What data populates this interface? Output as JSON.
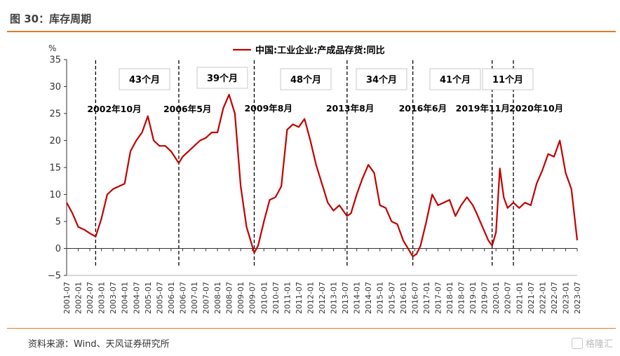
{
  "header": {
    "title": "图 30：库存周期"
  },
  "footer": {
    "source": "资料来源：Wind、天风证券研究所",
    "watermark": "格隆汇"
  },
  "colors": {
    "series": "#c00000",
    "rule": "#e07a2a",
    "vline": "#000000",
    "axis": "#333333"
  },
  "chart_data": {
    "type": "line",
    "title": "",
    "ylabel": "%",
    "xlabel": "",
    "ylim": [
      -5,
      35
    ],
    "yticks": [
      -5,
      0,
      5,
      10,
      15,
      20,
      25,
      30,
      35
    ],
    "xticks": [
      "2001-07",
      "2002-01",
      "2002-07",
      "2003-01",
      "2003-07",
      "2004-01",
      "2004-07",
      "2005-01",
      "2005-07",
      "2006-01",
      "2006-07",
      "2007-01",
      "2007-07",
      "2008-01",
      "2008-07",
      "2009-01",
      "2009-07",
      "2010-01",
      "2010-07",
      "2011-01",
      "2011-07",
      "2012-01",
      "2012-07",
      "2013-01",
      "2013-07",
      "2014-01",
      "2014-07",
      "2015-01",
      "2015-07",
      "2016-01",
      "2016-07",
      "2017-01",
      "2017-07",
      "2018-01",
      "2018-07",
      "2019-01",
      "2019-07",
      "2020-01",
      "2020-07",
      "2021-01",
      "2021-07",
      "2022-01",
      "2022-07",
      "2023-01",
      "2023-07"
    ],
    "grid": false,
    "legend_position": "top-center",
    "series": [
      {
        "name": "中国:工业企业:产成品存货:同比",
        "x": [
          "2001-07",
          "2001-10",
          "2002-01",
          "2002-04",
          "2002-07",
          "2002-10",
          "2003-01",
          "2003-04",
          "2003-07",
          "2003-10",
          "2004-01",
          "2004-04",
          "2004-07",
          "2004-10",
          "2005-01",
          "2005-04",
          "2005-07",
          "2005-10",
          "2006-01",
          "2006-05",
          "2006-07",
          "2006-10",
          "2007-01",
          "2007-04",
          "2007-07",
          "2007-10",
          "2008-01",
          "2008-04",
          "2008-07",
          "2008-10",
          "2009-01",
          "2009-04",
          "2009-08",
          "2009-10",
          "2010-01",
          "2010-04",
          "2010-07",
          "2010-10",
          "2011-01",
          "2011-04",
          "2011-07",
          "2011-10",
          "2012-01",
          "2012-04",
          "2012-07",
          "2012-10",
          "2013-01",
          "2013-04",
          "2013-08",
          "2013-10",
          "2014-01",
          "2014-04",
          "2014-07",
          "2014-10",
          "2015-01",
          "2015-04",
          "2015-07",
          "2015-10",
          "2016-01",
          "2016-06",
          "2016-08",
          "2016-10",
          "2017-01",
          "2017-04",
          "2017-07",
          "2017-10",
          "2018-01",
          "2018-04",
          "2018-07",
          "2018-10",
          "2019-01",
          "2019-03",
          "2019-06",
          "2019-09",
          "2019-11",
          "2020-01",
          "2020-03",
          "2020-05",
          "2020-07",
          "2020-10",
          "2021-01",
          "2021-04",
          "2021-07",
          "2021-10",
          "2022-01",
          "2022-04",
          "2022-07",
          "2022-10",
          "2023-01",
          "2023-04",
          "2023-07"
        ],
        "values": [
          8.5,
          6.5,
          4.0,
          3.5,
          2.8,
          2.2,
          5.5,
          10.0,
          11.0,
          11.5,
          12.0,
          18.0,
          20.0,
          21.5,
          24.5,
          20.0,
          19.0,
          19.0,
          18.0,
          15.8,
          17.0,
          18.0,
          19.0,
          20.0,
          20.5,
          21.5,
          21.5,
          26.0,
          28.5,
          25.0,
          11.5,
          4.0,
          -0.8,
          0.5,
          5.0,
          9.0,
          9.5,
          11.5,
          22.0,
          23.0,
          22.5,
          24.0,
          20.0,
          15.5,
          12.0,
          8.5,
          7.0,
          8.0,
          6.0,
          6.5,
          10.0,
          13.0,
          15.5,
          14.0,
          8.0,
          7.5,
          5.0,
          4.5,
          1.5,
          -1.5,
          -1.0,
          0.5,
          5.0,
          10.0,
          8.0,
          8.5,
          9.0,
          6.0,
          8.0,
          9.5,
          8.0,
          6.5,
          4.0,
          1.5,
          0.5,
          3.0,
          14.8,
          9.5,
          7.5,
          8.5,
          7.5,
          8.5,
          8.0,
          12.0,
          14.5,
          17.5,
          17.0,
          20.0,
          14.0,
          11.0,
          1.5
        ]
      }
    ],
    "vlines": [
      {
        "x": "2002-10",
        "label": "2002年10月"
      },
      {
        "x": "2006-05",
        "label": "2006年5月"
      },
      {
        "x": "2009-08",
        "label": "2009年8月"
      },
      {
        "x": "2013-08",
        "label": "2013年8月"
      },
      {
        "x": "2016-06",
        "label": "2016年6月"
      },
      {
        "x": "2019-11",
        "label": "2019年11月"
      },
      {
        "x": "2020-10",
        "label": "2020年10月"
      }
    ],
    "durations": [
      "43个月",
      "39个月",
      "48个月",
      "34个月",
      "41个月",
      "11个月"
    ]
  }
}
